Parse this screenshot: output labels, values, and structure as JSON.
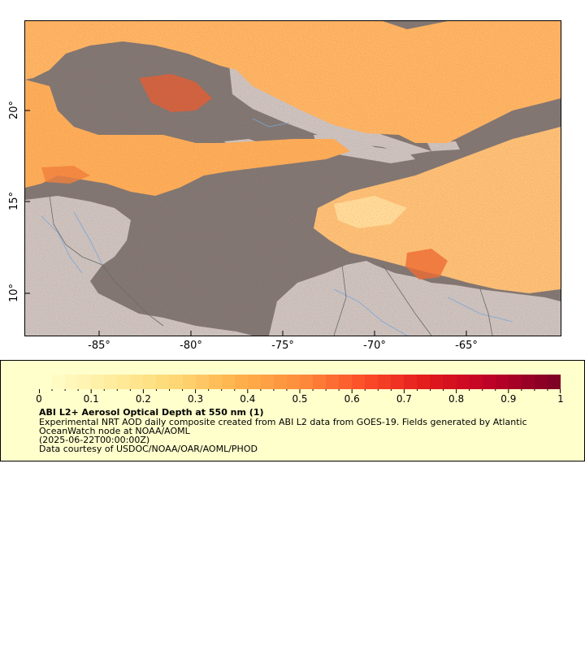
{
  "map": {
    "lat_labels": [
      "20°",
      "15°",
      "10°"
    ],
    "lon_labels": [
      "-85°",
      "-80°",
      "-75°",
      "-70°",
      "-65°"
    ],
    "colors": {
      "ocean_no_data": "#777777",
      "land": "#c8c8c8",
      "rivers": "#7aa7d6",
      "borders": "#7a7a7a"
    }
  },
  "colorbar": {
    "tick_labels": [
      "0",
      "0.1",
      "0.2",
      "0.3",
      "0.4",
      "0.5",
      "0.6",
      "0.7",
      "0.8",
      "0.9",
      "1"
    ],
    "range": [
      0,
      1
    ],
    "colors": [
      "#ffffcc",
      "#ffeda0",
      "#fed976",
      "#feb24c",
      "#fd8d3c",
      "#fc4e2a",
      "#e31a1c",
      "#bd0026",
      "#800026"
    ]
  },
  "legend": {
    "title": "ABI L2+ Aerosol Optical Depth at 550 nm (1)",
    "description_line1": "Experimental NRT AOD daily composite created from ABI L2 data from GOES-19. Fields generated by Atlantic",
    "description_line2": "OceanWatch node at NOAA/AOML",
    "date": "(2025-06-22T00:00:00Z)",
    "credit": "Data courtesy of USDOC/NOAA/OAR/AOML/PHOD"
  }
}
